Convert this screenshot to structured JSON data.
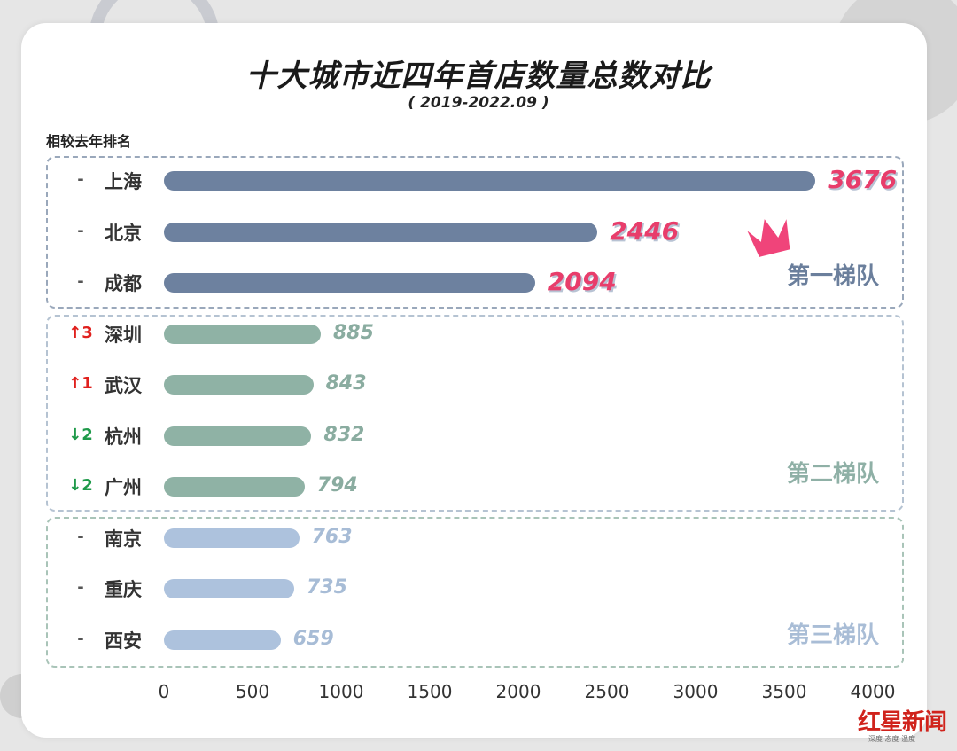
{
  "title": "十大城市近四年首店数量总数对比",
  "subtitle": "( 2019-2022.09 )",
  "rank_header": "相较去年排名",
  "tiers": [
    {
      "label": "第一梯队",
      "color": "#6b7f9c"
    },
    {
      "label": "第二梯队",
      "color": "#8fb0a6"
    },
    {
      "label": "第三梯队",
      "color": "#a9bdd6"
    }
  ],
  "colors": {
    "tier1_bar": "#6d819f",
    "tier2_bar": "#8fb2a5",
    "tier3_bar": "#adc2dd",
    "tier1_value": "#e83d6b",
    "tier2_value": "#8aaca0",
    "tier3_value": "#a7bcd6",
    "rank_up": "#e0201d",
    "rank_down": "#1f9a4a"
  },
  "logo": {
    "text": "红星新闻",
    "sub": "深度 态度 温度"
  },
  "chart_data": {
    "type": "bar",
    "orientation": "horizontal",
    "title": "十大城市近四年首店数量总数对比",
    "subtitle": "( 2019-2022.09 )",
    "categories": [
      "上海",
      "北京",
      "成都",
      "深圳",
      "武汉",
      "杭州",
      "广州",
      "南京",
      "重庆",
      "西安"
    ],
    "values": [
      3676,
      2446,
      2094,
      885,
      843,
      832,
      794,
      763,
      735,
      659
    ],
    "value_labels": [
      "3676",
      "2446",
      "2094",
      "885",
      "843",
      "832",
      "794",
      "763",
      "735",
      "659"
    ],
    "rank_change": [
      "-",
      "-",
      "-",
      "↑3",
      "↑1",
      "↓2",
      "↓2",
      "-",
      "-",
      "-"
    ],
    "tier": [
      1,
      1,
      1,
      2,
      2,
      2,
      2,
      3,
      3,
      3
    ],
    "xlim": [
      0,
      4000
    ],
    "xticks": [
      "0",
      "500",
      "1000",
      "1500",
      "2000",
      "2500",
      "3000",
      "3500",
      "4000"
    ],
    "tick_values": [
      0,
      500,
      1000,
      1500,
      2000,
      2500,
      3000,
      3500,
      4000
    ],
    "grid": false,
    "legend": "none"
  }
}
